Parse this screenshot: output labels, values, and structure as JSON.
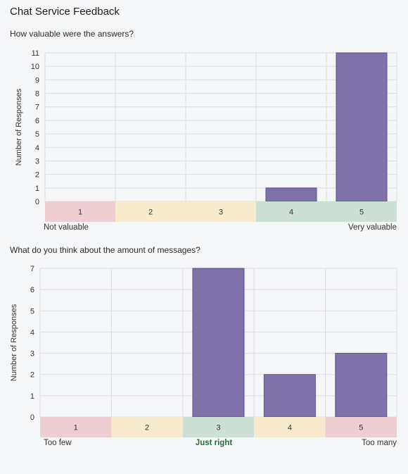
{
  "page": {
    "title": "Chat Service Feedback"
  },
  "chart_data": [
    {
      "type": "bar",
      "title": "How valuable were the answers?",
      "ylabel": "Number of Responses",
      "categories": [
        "1",
        "2",
        "3",
        "4",
        "5"
      ],
      "values": [
        0,
        0,
        0,
        1,
        11
      ],
      "ylim": [
        0,
        11
      ],
      "yticks": [
        0,
        1,
        2,
        3,
        4,
        5,
        6,
        7,
        8,
        9,
        10,
        11
      ],
      "grid": true,
      "bar_color": "#7f72a8",
      "category_colors": [
        "#eecdd3",
        "#f8ebcd",
        "#f8ebcd",
        "#cde0d6",
        "#cde0d6"
      ],
      "scale_labels": {
        "left": "Not valuable",
        "center": "",
        "right": "Very valuable"
      }
    },
    {
      "type": "bar",
      "title": "What do you think about the amount of messages?",
      "ylabel": "Number of Responses",
      "categories": [
        "1",
        "2",
        "3",
        "4",
        "5"
      ],
      "values": [
        0,
        0,
        7,
        2,
        3
      ],
      "ylim": [
        0,
        7
      ],
      "yticks": [
        0,
        1,
        2,
        3,
        4,
        5,
        6,
        7
      ],
      "grid": true,
      "bar_color": "#7f72a8",
      "category_colors": [
        "#eecdd3",
        "#f8ebcd",
        "#cde0d6",
        "#f8ebcd",
        "#eecdd3"
      ],
      "scale_labels": {
        "left": "Too few",
        "center": "Just right",
        "right": "Too many"
      }
    }
  ]
}
